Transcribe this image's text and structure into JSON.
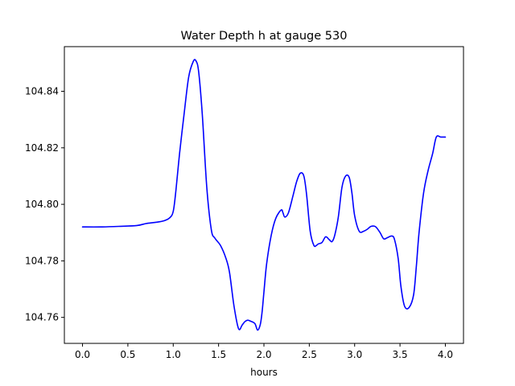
{
  "chart_data": {
    "type": "line",
    "title": "Water Depth h at gauge 530",
    "xlabel": "hours",
    "ylabel": "",
    "xlim": [
      -0.2,
      4.2
    ],
    "ylim": [
      104.7508,
      104.8558
    ],
    "xticks": [
      0.0,
      0.5,
      1.0,
      1.5,
      2.0,
      2.5,
      3.0,
      3.5,
      4.0
    ],
    "xtick_labels": [
      "0.0",
      "0.5",
      "1.0",
      "1.5",
      "2.0",
      "2.5",
      "3.0",
      "3.5",
      "4.0"
    ],
    "yticks": [
      104.76,
      104.78,
      104.8,
      104.82,
      104.84
    ],
    "ytick_labels": [
      "104.76",
      "104.78",
      "104.80",
      "104.82",
      "104.84"
    ],
    "grid": false,
    "legend": "none",
    "series": [
      {
        "color": "#0000ff",
        "x": [
          0.0,
          0.2,
          0.4,
          0.6,
          0.7,
          0.8,
          0.9,
          0.96,
          1.0,
          1.03,
          1.07,
          1.12,
          1.17,
          1.22,
          1.25,
          1.28,
          1.32,
          1.37,
          1.42,
          1.46,
          1.52,
          1.58,
          1.62,
          1.67,
          1.72,
          1.76,
          1.79,
          1.82,
          1.85,
          1.9,
          1.93,
          1.96,
          1.98,
          2.0,
          2.03,
          2.08,
          2.13,
          2.19,
          2.21,
          2.23,
          2.27,
          2.32,
          2.36,
          2.4,
          2.44,
          2.47,
          2.51,
          2.55,
          2.58,
          2.6,
          2.64,
          2.68,
          2.72,
          2.75,
          2.78,
          2.82,
          2.86,
          2.9,
          2.94,
          2.97,
          3.0,
          3.05,
          3.1,
          3.14,
          3.18,
          3.23,
          3.28,
          3.32,
          3.36,
          3.41,
          3.44,
          3.48,
          3.51,
          3.55,
          3.6,
          3.65,
          3.68,
          3.71,
          3.76,
          3.81,
          3.86,
          3.9,
          3.95,
          4.0
        ],
        "y": [
          104.792,
          104.792,
          104.7922,
          104.7925,
          104.7932,
          104.7936,
          104.7942,
          104.7952,
          104.7975,
          104.805,
          104.818,
          104.832,
          104.845,
          104.8505,
          104.8508,
          104.847,
          104.832,
          104.806,
          104.791,
          104.788,
          104.7855,
          104.781,
          104.776,
          104.764,
          104.756,
          104.7573,
          104.7585,
          104.759,
          104.7587,
          104.7578,
          104.7555,
          104.7575,
          104.762,
          104.769,
          104.779,
          104.789,
          104.795,
          104.798,
          104.797,
          104.7955,
          104.797,
          104.803,
          104.808,
          104.811,
          104.81,
          104.8035,
          104.7905,
          104.7855,
          104.7855,
          104.786,
          104.7865,
          104.7885,
          104.7875,
          104.7868,
          104.789,
          104.7955,
          104.806,
          104.81,
          104.8095,
          104.804,
          104.796,
          104.7905,
          104.7905,
          104.7912,
          104.7922,
          104.7921,
          104.79,
          104.7878,
          104.7882,
          104.7888,
          104.7875,
          104.7808,
          104.771,
          104.764,
          104.7635,
          104.768,
          104.778,
          104.79,
          104.804,
          104.812,
          104.818,
          104.8238,
          104.8238,
          104.8238
        ]
      }
    ]
  }
}
